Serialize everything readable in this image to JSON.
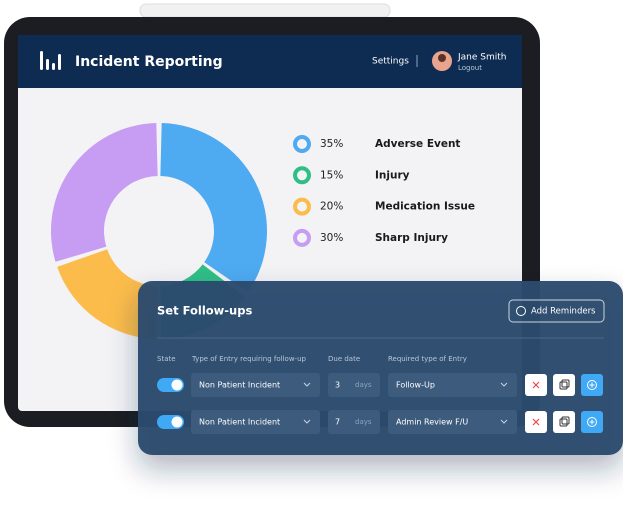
{
  "header": {
    "title": "Incident Reporting",
    "settings": "Settings",
    "user_name": "Jane Smith",
    "logout": "Logout"
  },
  "chart_data": {
    "type": "pie",
    "categories": [
      "Adverse Event",
      "Injury",
      "Medication Issue",
      "Sharp Injury"
    ],
    "values": [
      35,
      15,
      20,
      30
    ],
    "value_labels": [
      "35%",
      "15%",
      "20%",
      "30%"
    ],
    "colors": [
      "#4eaaf1",
      "#2fbf86",
      "#fbbc4b",
      "#c79df3"
    ]
  },
  "followups": {
    "title": "Set Follow-ups",
    "add_button": "Add Reminders",
    "columns": [
      "State",
      "Type of Entry requiring follow-up",
      "Due date",
      "Required type of Entry"
    ],
    "rows": [
      {
        "type": "Non Patient Incident",
        "due": "3",
        "unit": "days",
        "required": "Follow-Up"
      },
      {
        "type": "Non Patient Incident",
        "due": "7",
        "unit": "days",
        "required": "Admin Review F/U"
      }
    ]
  }
}
